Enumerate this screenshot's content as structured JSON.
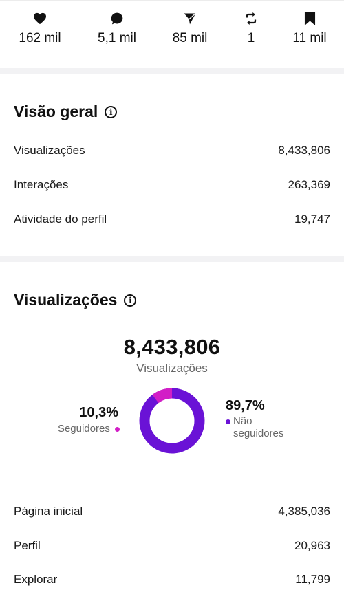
{
  "stats": [
    {
      "icon": "heart-icon",
      "value": "162 mil"
    },
    {
      "icon": "comment-icon",
      "value": "5,1 mil"
    },
    {
      "icon": "share-icon",
      "value": "85 mil"
    },
    {
      "icon": "repost-icon",
      "value": "1"
    },
    {
      "icon": "bookmark-icon",
      "value": "11 mil"
    }
  ],
  "overview": {
    "title": "Visão geral",
    "rows": [
      {
        "label": "Visualizações",
        "value": "8,433,806"
      },
      {
        "label": "Interações",
        "value": "263,369"
      },
      {
        "label": "Atividade do perfil",
        "value": "19,747"
      }
    ]
  },
  "views": {
    "title": "Visualizações",
    "total": "8,433,806",
    "total_label": "Visualizações",
    "followers_pct": "10,3%",
    "followers_label": "Seguidores",
    "non_followers_pct": "89,7%",
    "non_followers_label_1": "Não",
    "non_followers_label_2": "seguidores",
    "followers_fraction": 0.103,
    "rows": [
      {
        "label": "Página inicial",
        "value": "4,385,036"
      },
      {
        "label": "Perfil",
        "value": "20,963"
      },
      {
        "label": "Explorar",
        "value": "11,799"
      }
    ]
  },
  "colors": {
    "followers": "#d21ec6",
    "non_followers": "#6a12d6"
  }
}
